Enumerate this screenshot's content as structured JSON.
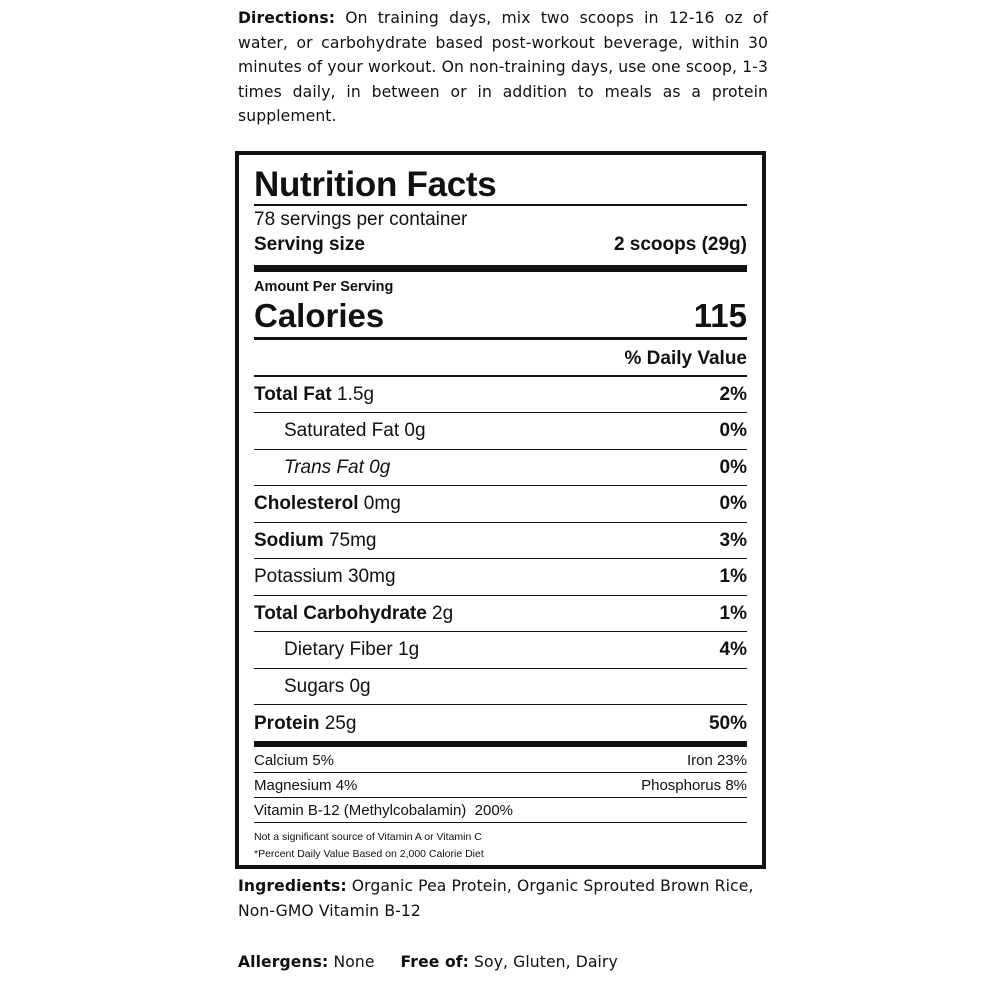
{
  "directions": {
    "label": "Directions:",
    "text": " On training days, mix two scoops in 12-16 oz of water, or carbohydrate based post-workout beverage, within 30 minutes of your workout. On non-training days, use one scoop, 1-3 times daily, in between or in addition to meals as a protein supplement."
  },
  "label": {
    "title": "Nutrition Facts",
    "servings": "78 servings per container",
    "serving_size_label": "Serving size",
    "serving_size_value": "2 scoops (29g)",
    "amount_per_serving": "Amount Per Serving",
    "calories_label": "Calories",
    "calories_value": "115",
    "daily_value_header": "% Daily Value",
    "nutrients": [
      {
        "name": "Total Fat",
        "amount": " 1.5g",
        "dv": "2%"
      },
      {
        "name": "Saturated Fat 0g",
        "amount": "",
        "dv": "0%"
      },
      {
        "name": "Trans Fat 0g",
        "amount": "",
        "dv": "0%"
      },
      {
        "name": "Cholesterol",
        "amount": " 0mg",
        "dv": "0%"
      },
      {
        "name": "Sodium",
        "amount": " 75mg",
        "dv": "3%"
      },
      {
        "name": "Potassium 30mg",
        "amount": "",
        "dv": "1%"
      },
      {
        "name": "Total Carbohydrate",
        "amount": " 2g",
        "dv": "1%"
      },
      {
        "name": "Dietary Fiber 1g",
        "amount": "",
        "dv": "4%"
      },
      {
        "name": "Sugars 0g",
        "amount": "",
        "dv": ""
      },
      {
        "name": "Protein",
        "amount": " 25g",
        "dv": "50%"
      }
    ],
    "vitamins": [
      {
        "left": "Calcium 5%",
        "right": "Iron 23%"
      },
      {
        "left": "Magnesium 4%",
        "right": "Phosphorus 8%"
      },
      {
        "left": "Vitamin B-12 (Methylcobalamin)  200%",
        "right": ""
      }
    ],
    "footnotes": [
      "Not a significant source of Vitamin A or Vitamin C",
      "*Percent Daily Value Based on 2,000 Calorie Diet"
    ]
  },
  "ingredients": {
    "label": "Ingredients:",
    "text": " Organic Pea Protein, Organic Sprouted Brown Rice, Non-GMO Vitamin B-12"
  },
  "allergens": {
    "label": "Allergens:",
    "text": " None",
    "free_label": "Free of:",
    "free_text": " Soy, Gluten, Dairy"
  }
}
